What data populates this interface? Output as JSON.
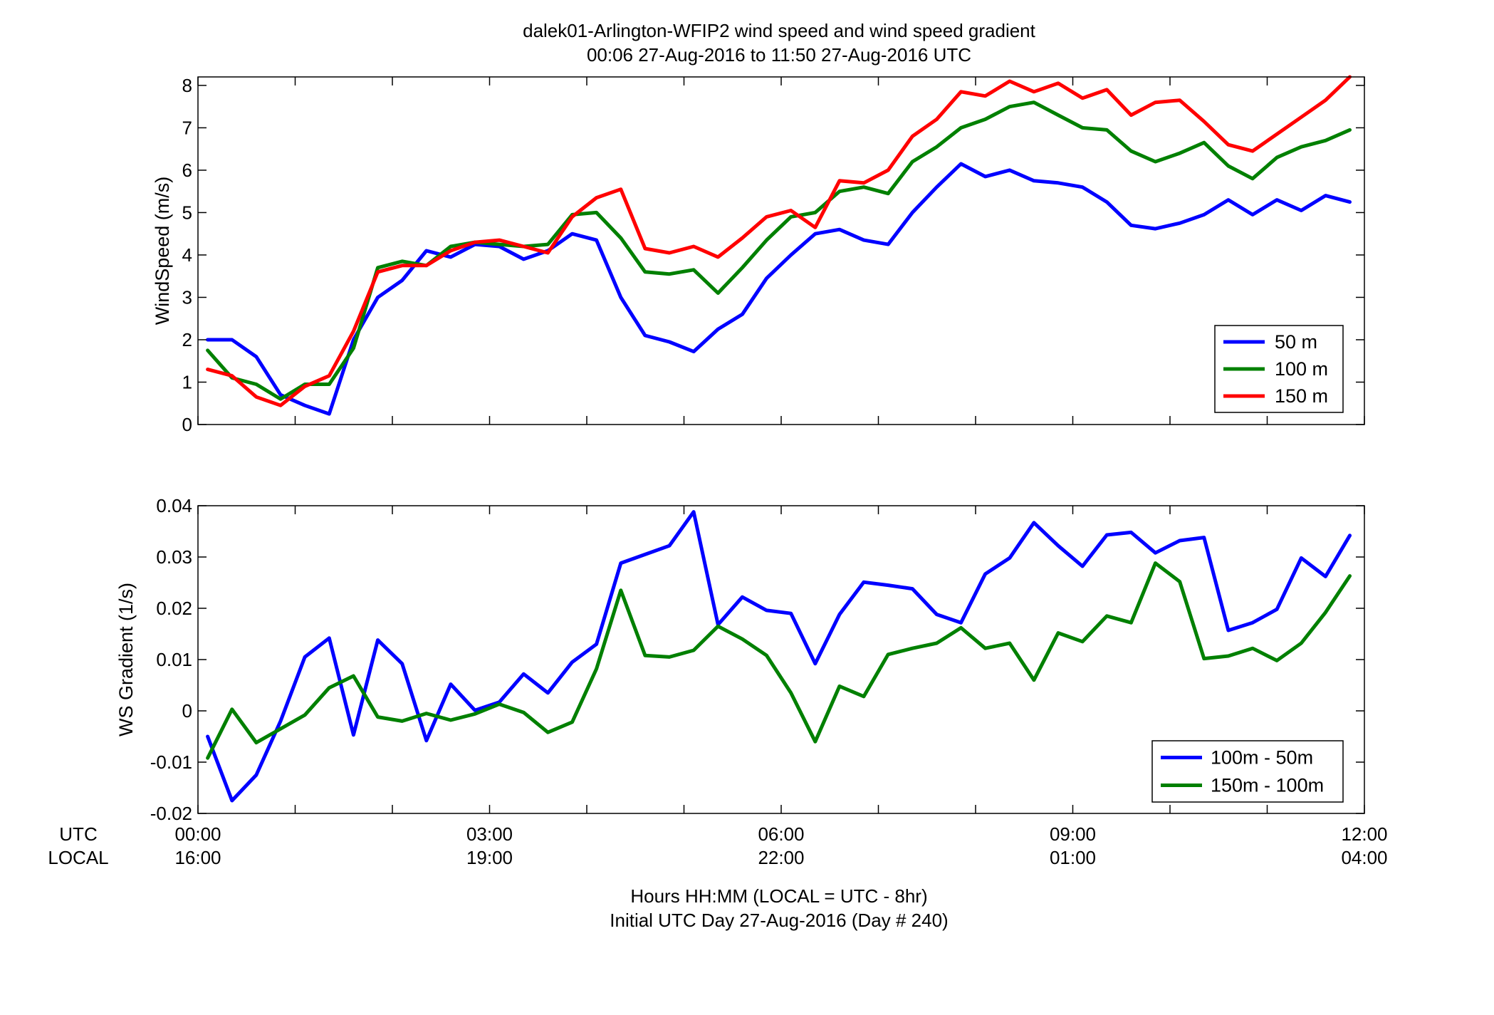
{
  "title_line1": "dalek01-Arlington-WFIP2  wind speed and wind speed gradient",
  "title_line2": "00:06 27-Aug-2016 to 11:50 27-Aug-2016  UTC",
  "xlabel_line1": "Hours HH:MM  (LOCAL = UTC - 8hr)",
  "xlabel_line2": "Initial UTC Day 27-Aug-2016 (Day # 240)",
  "row_label_utc": "UTC",
  "row_label_local": "LOCAL",
  "x_ticks_utc": [
    "00:00",
    "03:00",
    "06:00",
    "09:00",
    "12:00"
  ],
  "x_ticks_local": [
    "16:00",
    "19:00",
    "22:00",
    "01:00",
    "04:00"
  ],
  "chart_data": [
    {
      "type": "line",
      "ylabel": "WindSpeed (m/s)",
      "xlim": [
        0,
        12
      ],
      "ylim": [
        0,
        8.2
      ],
      "yticks": [
        "0",
        "1",
        "2",
        "3",
        "4",
        "5",
        "6",
        "7",
        "8"
      ],
      "legend_position": "bottom-right",
      "x": [
        0.1,
        0.35,
        0.6,
        0.85,
        1.1,
        1.35,
        1.6,
        1.85,
        2.1,
        2.35,
        2.6,
        2.85,
        3.1,
        3.35,
        3.6,
        3.85,
        4.1,
        4.35,
        4.6,
        4.85,
        5.1,
        5.35,
        5.6,
        5.85,
        6.1,
        6.35,
        6.6,
        6.85,
        7.1,
        7.35,
        7.6,
        7.85,
        8.1,
        8.35,
        8.6,
        8.85,
        9.1,
        9.35,
        9.6,
        9.85,
        10.1,
        10.35,
        10.6,
        10.85,
        11.1,
        11.35,
        11.6,
        11.85
      ],
      "series": [
        {
          "name": "50 m",
          "color": "#0000ff",
          "values": [
            2.0,
            2.0,
            1.6,
            0.7,
            0.45,
            0.25,
            2.0,
            3.0,
            3.4,
            4.1,
            3.95,
            4.25,
            4.2,
            3.9,
            4.1,
            4.5,
            4.35,
            3.0,
            2.1,
            1.95,
            1.72,
            2.25,
            2.6,
            3.45,
            4.0,
            4.5,
            4.6,
            4.35,
            4.25,
            5.0,
            5.6,
            6.15,
            5.85,
            6.0,
            5.75,
            5.7,
            5.6,
            5.25,
            4.7,
            4.62,
            4.75,
            4.95,
            5.3,
            4.95,
            5.3,
            5.05,
            5.4,
            5.25
          ]
        },
        {
          "name": "100 m",
          "color": "#008000",
          "values": [
            1.75,
            1.1,
            0.95,
            0.6,
            0.95,
            0.95,
            1.8,
            3.7,
            3.85,
            3.75,
            4.2,
            4.3,
            4.25,
            4.2,
            4.25,
            4.95,
            5.0,
            4.4,
            3.6,
            3.55,
            3.65,
            3.1,
            3.7,
            4.35,
            4.9,
            5.0,
            5.5,
            5.6,
            5.45,
            6.2,
            6.55,
            7.0,
            7.2,
            7.5,
            7.6,
            7.3,
            7.0,
            6.95,
            6.45,
            6.2,
            6.4,
            6.65,
            6.1,
            5.8,
            6.3,
            6.55,
            6.7,
            6.95
          ]
        },
        {
          "name": "150 m",
          "color": "#ff0000",
          "values": [
            1.3,
            1.15,
            0.65,
            0.45,
            0.9,
            1.15,
            2.2,
            3.6,
            3.75,
            3.75,
            4.1,
            4.3,
            4.35,
            4.2,
            4.05,
            4.9,
            5.35,
            5.55,
            4.15,
            4.05,
            4.2,
            3.95,
            4.4,
            4.9,
            5.05,
            4.65,
            5.75,
            5.7,
            6.0,
            6.8,
            7.2,
            7.85,
            7.75,
            8.1,
            7.85,
            8.05,
            7.7,
            7.9,
            7.3,
            7.6,
            7.65,
            7.15,
            6.6,
            6.45,
            6.85,
            7.25,
            7.65,
            8.2
          ]
        }
      ]
    },
    {
      "type": "line",
      "ylabel": "WS Gradient (1/s)",
      "xlim": [
        0,
        12
      ],
      "ylim": [
        -0.02,
        0.04
      ],
      "yticks": [
        "-0.02",
        "-0.01",
        "0",
        "0.01",
        "0.02",
        "0.03",
        "0.04"
      ],
      "legend_position": "bottom-right",
      "x": [
        0.1,
        0.35,
        0.6,
        0.85,
        1.1,
        1.35,
        1.6,
        1.85,
        2.1,
        2.35,
        2.6,
        2.85,
        3.1,
        3.35,
        3.6,
        3.85,
        4.1,
        4.35,
        4.6,
        4.85,
        5.1,
        5.35,
        5.6,
        5.85,
        6.1,
        6.35,
        6.6,
        6.85,
        7.1,
        7.35,
        7.6,
        7.85,
        8.1,
        8.35,
        8.6,
        8.85,
        9.1,
        9.35,
        9.6,
        9.85,
        10.1,
        10.35,
        10.6,
        10.85,
        11.1,
        11.35,
        11.6,
        11.85
      ],
      "series": [
        {
          "name": "100m - 50m",
          "color": "#0000ff",
          "values": [
            -0.005,
            -0.0175,
            -0.0125,
            -0.002,
            0.0105,
            0.0142,
            -0.0047,
            0.0138,
            0.0092,
            -0.0058,
            0.0052,
            0.0001,
            0.0017,
            0.0072,
            0.0035,
            0.0095,
            0.013,
            0.0288,
            0.0305,
            0.0322,
            0.0388,
            0.0168,
            0.0222,
            0.0196,
            0.019,
            0.0092,
            0.0188,
            0.0251,
            0.0245,
            0.0238,
            0.0188,
            0.0172,
            0.0267,
            0.0298,
            0.0367,
            0.0322,
            0.0282,
            0.0343,
            0.0348,
            0.0308,
            0.0332,
            0.0338,
            0.0157,
            0.0172,
            0.0198,
            0.0298,
            0.0262,
            0.0342
          ]
        },
        {
          "name": "150m - 100m",
          "color": "#008000",
          "values": [
            -0.0092,
            0.0003,
            -0.0062,
            -0.0035,
            -0.0008,
            0.0045,
            0.0068,
            -0.0012,
            -0.002,
            -0.0005,
            -0.0018,
            -0.0006,
            0.0013,
            -0.0003,
            -0.0042,
            -0.0022,
            0.0082,
            0.0235,
            0.0108,
            0.0105,
            0.0118,
            0.0165,
            0.014,
            0.0108,
            0.0035,
            -0.006,
            0.0048,
            0.0028,
            0.011,
            0.0122,
            0.0132,
            0.0162,
            0.0122,
            0.0132,
            0.006,
            0.0152,
            0.0135,
            0.0185,
            0.0172,
            0.0288,
            0.0252,
            0.0102,
            0.0107,
            0.0122,
            0.0098,
            0.0132,
            0.0192,
            0.0263
          ]
        }
      ]
    }
  ]
}
